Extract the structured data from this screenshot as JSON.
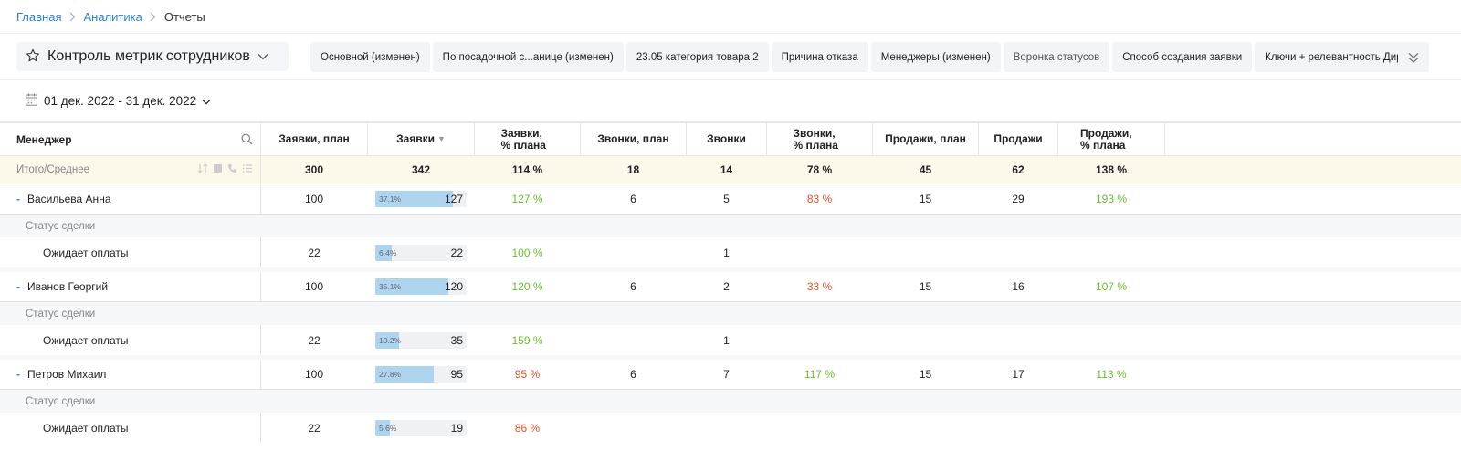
{
  "breadcrumb": {
    "home": "Главная",
    "analytics": "Аналитика",
    "current": "Отчеты"
  },
  "report": {
    "title": "Контроль метрик сотрудников"
  },
  "tabs": [
    {
      "label": "Основной (изменен)"
    },
    {
      "label": "По посадочной с...анице (изменен)"
    },
    {
      "label": "23.05 категория товара 2"
    },
    {
      "label": "Причина отказа"
    },
    {
      "label": "Менеджеры (изменен)"
    },
    {
      "label": "Воронка статусов"
    },
    {
      "label": "Способ создания заявки"
    },
    {
      "label": "Ключи + релевантность Директ"
    }
  ],
  "date_range": "01 дек. 2022 - 31 дек. 2022",
  "table": {
    "columns": {
      "manager": "Менеджер",
      "leads_plan": "Заявки, план",
      "leads": "Заявки",
      "leads_sort": "▼",
      "leads_pct": "Заявки, % плана",
      "calls_plan": "Звонки, план",
      "calls": "Звонки",
      "calls_pct": "Звонки, % плана",
      "sales_plan": "Продажи, план",
      "sales": "Продажи",
      "sales_pct": "Продажи, % плана"
    },
    "total": {
      "label": "Итого/Среднее",
      "leads_plan": "300",
      "leads": "342",
      "leads_pct": "114 %",
      "calls_plan": "18",
      "calls": "14",
      "calls_pct": "78 %",
      "sales_plan": "45",
      "sales": "62",
      "sales_pct": "138 %"
    },
    "managers": [
      {
        "name": "Васильева Анна",
        "leads_plan": "100",
        "leads_share": "37.1%",
        "leads_share_value": 37.1,
        "leads": "127",
        "leads_pct": "127 %",
        "calls_plan": "6",
        "calls": "5",
        "calls_pct": "83 %",
        "sales_plan": "15",
        "sales": "29",
        "sales_pct": "193 %",
        "status_group": "Статус сделки",
        "sub": {
          "label": "Ожидает оплаты",
          "leads_plan": "22",
          "leads_share": "6.4%",
          "leads_share_value": 6.4,
          "leads": "22",
          "leads_pct": "100 %",
          "calls": "1"
        }
      },
      {
        "name": "Иванов Георгий",
        "leads_plan": "100",
        "leads_share": "35.1%",
        "leads_share_value": 35.1,
        "leads": "120",
        "leads_pct": "120 %",
        "calls_plan": "6",
        "calls": "2",
        "calls_pct": "33 %",
        "sales_plan": "15",
        "sales": "16",
        "sales_pct": "107 %",
        "status_group": "Статус сделки",
        "sub": {
          "label": "Ожидает оплаты",
          "leads_plan": "22",
          "leads_share": "10.2%",
          "leads_share_value": 10.2,
          "leads": "35",
          "leads_pct": "159 %",
          "calls": "1"
        }
      },
      {
        "name": "Петров Михаил",
        "leads_plan": "100",
        "leads_share": "27.8%",
        "leads_share_value": 27.8,
        "leads": "95",
        "leads_pct": "95 %",
        "calls_plan": "6",
        "calls": "7",
        "calls_pct": "117 %",
        "sales_plan": "15",
        "sales": "17",
        "sales_pct": "113 %",
        "status_group": "Статус сделки",
        "sub": {
          "label": "Ожидает оплаты",
          "leads_plan": "22",
          "leads_share": "5.6%",
          "leads_share_value": 5.6,
          "leads": "19",
          "leads_pct": "86 %",
          "calls": ""
        }
      }
    ]
  },
  "colors": {
    "link": "#2f7fd8",
    "positive": "#6abf2e",
    "negative": "#e0522b",
    "bar": "#aed4ef",
    "total_row": "#fcf8ea"
  },
  "icons": {
    "breadcrumb_separator": "chevron-right-icon",
    "favorite": "star-icon",
    "report_dropdown": "chevron-down-icon",
    "tabs_more": "double-chevron-down-icon",
    "date": "calendar-icon",
    "search": "search-icon",
    "total_tools": [
      "sort-icon",
      "square-icon",
      "phone-icon",
      "list-icon"
    ]
  }
}
